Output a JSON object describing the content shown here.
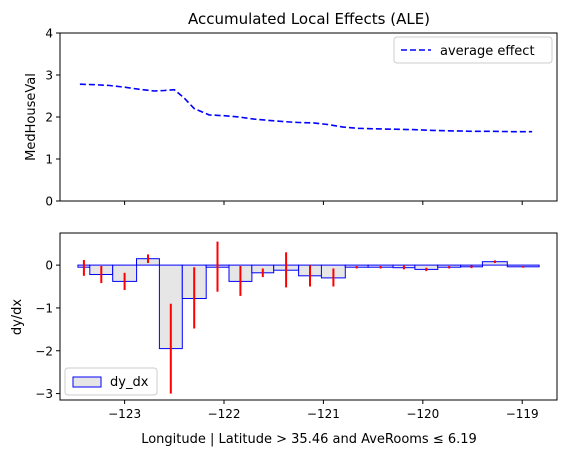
{
  "title": "Accumulated Local Effects (ALE)",
  "xlabel": "Longitude | Latitude > 35.46 and AveRooms ≤ 6.19",
  "chart_data": [
    {
      "type": "line",
      "title": "Accumulated Local Effects (ALE)",
      "ylabel": "MedHouseVal",
      "ylim": [
        0,
        4
      ],
      "yticks": [
        "0",
        "1",
        "2",
        "3",
        "4"
      ],
      "xlim": [
        -123.65,
        -118.65
      ],
      "grid": false,
      "legend_position": "top-right",
      "series": [
        {
          "name": "average effect",
          "color": "#0000ff",
          "style": "dashed",
          "x": [
            -123.45,
            -123.3,
            -123.15,
            -123.0,
            -122.85,
            -122.7,
            -122.6,
            -122.5,
            -122.4,
            -122.3,
            -122.15,
            -122.0,
            -121.85,
            -121.7,
            -121.55,
            -121.4,
            -121.25,
            -121.1,
            -120.95,
            -120.8,
            -120.65,
            -120.5,
            -120.3,
            -120.1,
            -119.9,
            -119.7,
            -119.5,
            -119.3,
            -119.1,
            -118.9
          ],
          "values": [
            2.78,
            2.77,
            2.75,
            2.71,
            2.66,
            2.62,
            2.63,
            2.65,
            2.45,
            2.2,
            2.05,
            2.03,
            2.0,
            1.95,
            1.92,
            1.89,
            1.87,
            1.86,
            1.82,
            1.76,
            1.73,
            1.72,
            1.71,
            1.7,
            1.68,
            1.67,
            1.66,
            1.66,
            1.65,
            1.65
          ]
        }
      ]
    },
    {
      "type": "bar",
      "ylabel": "dy/dx",
      "ylim": [
        -3.15,
        0.75
      ],
      "yticks": [
        "0",
        "−1",
        "−2",
        "−3"
      ],
      "xlim": [
        -123.65,
        -118.65
      ],
      "xticks": [
        "−123",
        "−122",
        "−121",
        "−120",
        "−119"
      ],
      "grid": false,
      "legend_position": "bottom-left",
      "bar_fill": "#e6e6e6",
      "bar_edge": "#0000ff",
      "error_color": "#ff0000",
      "series": [
        {
          "name": "dy_dx",
          "bins": [
            {
              "x0": -123.47,
              "x1": -123.35,
              "value": -0.05,
              "err_lo": -0.25,
              "err_hi": 0.12
            },
            {
              "x0": -123.35,
              "x1": -123.12,
              "value": -0.22,
              "err_lo": -0.42,
              "err_hi": -0.02
            },
            {
              "x0": -123.12,
              "x1": -122.88,
              "value": -0.38,
              "err_lo": -0.58,
              "err_hi": -0.18
            },
            {
              "x0": -122.88,
              "x1": -122.65,
              "value": 0.15,
              "err_lo": 0.05,
              "err_hi": 0.25
            },
            {
              "x0": -122.65,
              "x1": -122.42,
              "value": -1.95,
              "err_lo": -3.0,
              "err_hi": -0.9
            },
            {
              "x0": -122.42,
              "x1": -122.18,
              "value": -0.78,
              "err_lo": -1.48,
              "err_hi": -0.05
            },
            {
              "x0": -122.18,
              "x1": -121.95,
              "value": -0.05,
              "err_lo": -0.62,
              "err_hi": 0.55
            },
            {
              "x0": -121.95,
              "x1": -121.72,
              "value": -0.38,
              "err_lo": -0.72,
              "err_hi": -0.02
            },
            {
              "x0": -121.72,
              "x1": -121.5,
              "value": -0.18,
              "err_lo": -0.28,
              "err_hi": -0.08
            },
            {
              "x0": -121.5,
              "x1": -121.25,
              "value": -0.12,
              "err_lo": -0.52,
              "err_hi": 0.3
            },
            {
              "x0": -121.25,
              "x1": -121.02,
              "value": -0.25,
              "err_lo": -0.5,
              "err_hi": 0.0
            },
            {
              "x0": -121.02,
              "x1": -120.78,
              "value": -0.3,
              "err_lo": -0.5,
              "err_hi": -0.08
            },
            {
              "x0": -120.78,
              "x1": -120.55,
              "value": -0.05,
              "err_lo": -0.08,
              "err_hi": -0.02
            },
            {
              "x0": -120.55,
              "x1": -120.3,
              "value": -0.05,
              "err_lo": -0.08,
              "err_hi": -0.02
            },
            {
              "x0": -120.3,
              "x1": -120.08,
              "value": -0.06,
              "err_lo": -0.1,
              "err_hi": 0.0
            },
            {
              "x0": -120.08,
              "x1": -119.85,
              "value": -0.1,
              "err_lo": -0.14,
              "err_hi": -0.06
            },
            {
              "x0": -119.85,
              "x1": -119.62,
              "value": -0.05,
              "err_lo": -0.08,
              "err_hi": -0.02
            },
            {
              "x0": -119.62,
              "x1": -119.4,
              "value": -0.04,
              "err_lo": -0.07,
              "err_hi": -0.01
            },
            {
              "x0": -119.4,
              "x1": -119.15,
              "value": 0.08,
              "err_lo": 0.05,
              "err_hi": 0.11
            },
            {
              "x0": -119.15,
              "x1": -118.83,
              "value": -0.04,
              "err_lo": -0.06,
              "err_hi": -0.02
            }
          ]
        }
      ]
    }
  ]
}
